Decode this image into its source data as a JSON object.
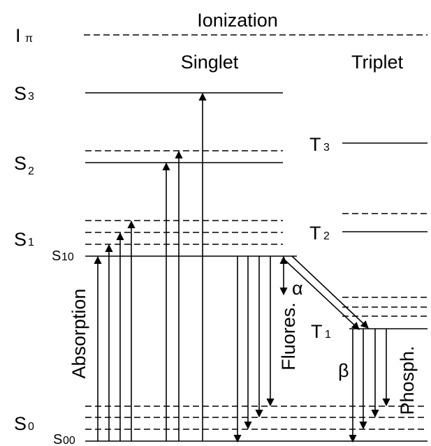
{
  "header": {
    "ionization": "Ionization",
    "singlet": "Singlet",
    "triplet": "Triplet"
  },
  "levels": [
    {
      "symbol": "I",
      "index": "π"
    },
    {
      "symbol": "S",
      "index": "3"
    },
    {
      "symbol": "S",
      "index": "2"
    },
    {
      "symbol": "S",
      "index": "1"
    },
    {
      "symbol": "S",
      "index": "10"
    },
    {
      "symbol": "S",
      "index": "0"
    },
    {
      "symbol": "S",
      "index": "00"
    },
    {
      "symbol": "T",
      "index": "3"
    },
    {
      "symbol": "T",
      "index": "2"
    },
    {
      "symbol": "T",
      "index": "1"
    }
  ],
  "processes": {
    "absorption": "Absorption",
    "fluorescence": "Fluores.",
    "phosphorescence": "Phosph.",
    "alpha": "α",
    "beta": "β"
  }
}
